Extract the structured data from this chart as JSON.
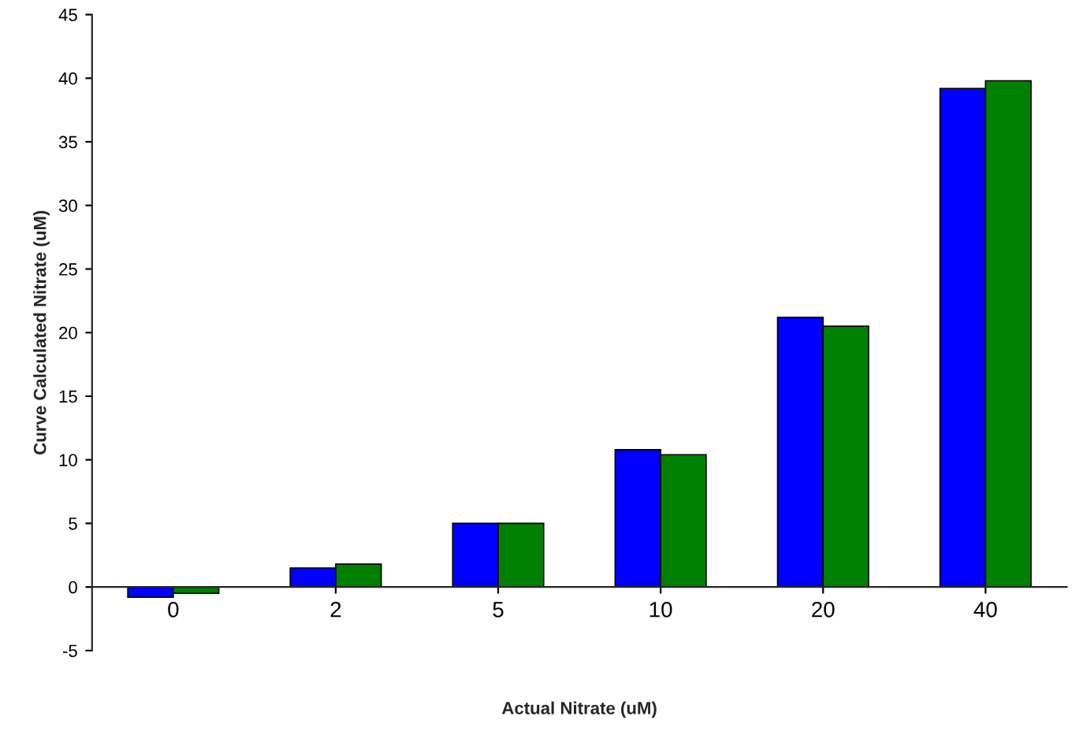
{
  "chart_data": {
    "type": "bar",
    "xlabel": "Actual Nitrate (uM)",
    "ylabel": "Curve Calculated Nitrate (uM)",
    "categories": [
      "0",
      "2",
      "5",
      "10",
      "20",
      "40"
    ],
    "series": [
      {
        "color": "#0000ff",
        "values": [
          -0.8,
          1.5,
          5.0,
          10.8,
          21.2,
          39.2
        ]
      },
      {
        "color": "#008000",
        "values": [
          -0.5,
          1.8,
          5.0,
          10.4,
          20.5,
          39.8
        ]
      }
    ],
    "ylim": [
      -5,
      45
    ],
    "yticks": [
      -5,
      0,
      5,
      10,
      15,
      20,
      25,
      30,
      35,
      40,
      45
    ],
    "grid": false
  }
}
